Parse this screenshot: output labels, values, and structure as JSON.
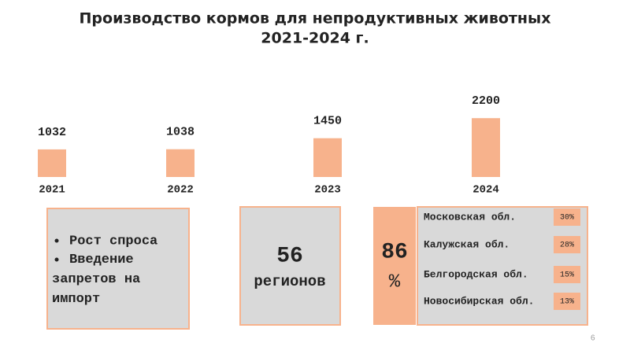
{
  "chart_data": {
    "type": "bar",
    "title": "Производство кормов для непродуктивных животных",
    "subtitle": "2021-2024 г.",
    "categories": [
      "2021",
      "2022",
      "2023",
      "2024"
    ],
    "values": [
      1032,
      1038,
      1450,
      2200
    ],
    "color": "#f7b28c"
  },
  "panels": {
    "reasons": [
      "Рост спроса",
      "Введение запретов на импорт"
    ],
    "regions": {
      "value": "56",
      "label": "регионов"
    },
    "share": {
      "value": "86",
      "unit": "%",
      "items": [
        {
          "name": "Московская обл.",
          "label": "30%"
        },
        {
          "name": "Калужская обл.",
          "label": "28%"
        },
        {
          "name": "Белгородская обл.",
          "label": "15%"
        },
        {
          "name": "Новосибирская обл.",
          "label": "13%"
        }
      ]
    }
  },
  "page_number": "6"
}
